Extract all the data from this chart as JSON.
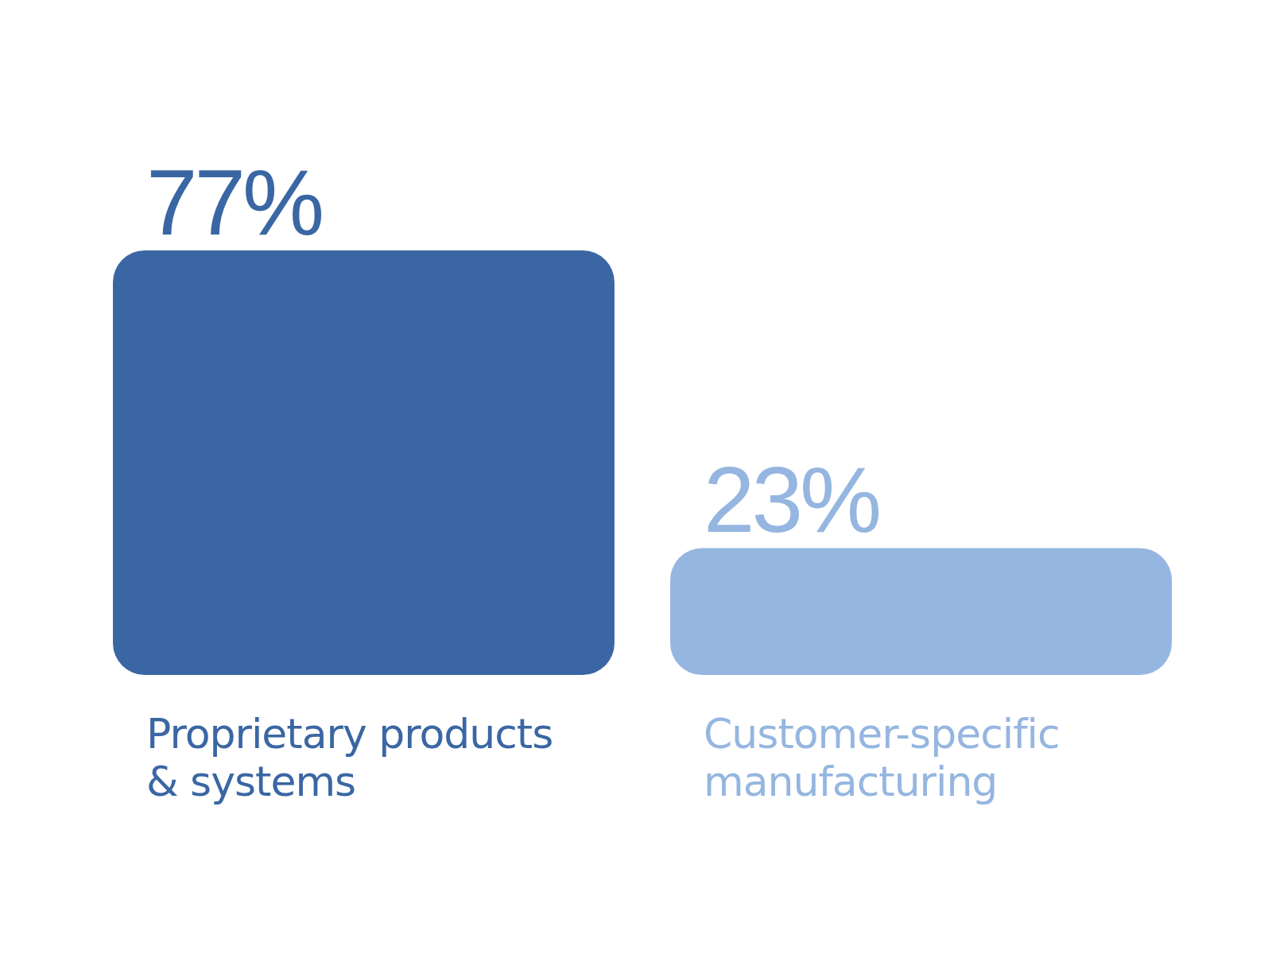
{
  "chart_data": {
    "type": "bar",
    "categories": [
      "Proprietary products & systems",
      "Customer-specific manufacturing"
    ],
    "values": [
      77,
      23
    ],
    "colors": [
      "#3a67a3",
      "#95b6e0"
    ],
    "value_labels": [
      "77%",
      "23%"
    ]
  }
}
